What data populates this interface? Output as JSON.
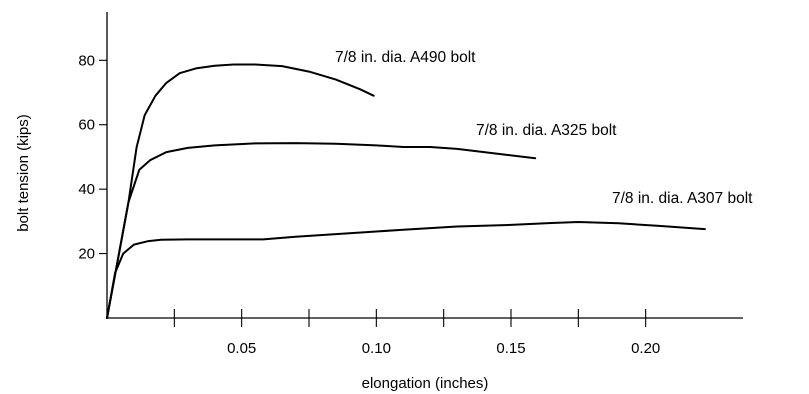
{
  "chart_data": {
    "type": "line",
    "title": "",
    "xlabel": "elongation (inches)",
    "ylabel": "bolt tension (kips)",
    "xlim": [
      0,
      0.225
    ],
    "ylim": [
      0,
      95
    ],
    "x_ticks": [
      0.025,
      0.05,
      0.075,
      0.1,
      0.125,
      0.15,
      0.175,
      0.2
    ],
    "x_tick_labels": [
      "0.05",
      "0.10",
      "0.15",
      "0.20"
    ],
    "x_tick_label_values": [
      0.05,
      0.1,
      0.15,
      0.2
    ],
    "y_ticks": [
      20,
      40,
      60,
      80
    ],
    "y_tick_labels": [
      "20",
      "40",
      "60",
      "80"
    ],
    "grid": false,
    "legend": "none",
    "series": [
      {
        "name": "7/8 in. dia. A490 bolt",
        "x": [
          0,
          0.004,
          0.008,
          0.011,
          0.014,
          0.018,
          0.022,
          0.027,
          0.033,
          0.04,
          0.047,
          0.055,
          0.065,
          0.075,
          0.085,
          0.094,
          0.099
        ],
        "y": [
          0,
          18,
          36,
          53,
          63,
          69,
          73,
          76,
          77.5,
          78.3,
          78.7,
          78.7,
          78.2,
          76.5,
          74,
          71,
          69
        ]
      },
      {
        "name": "7/8 in. dia. A325 bolt",
        "x": [
          0,
          0.004,
          0.008,
          0.012,
          0.016,
          0.022,
          0.03,
          0.04,
          0.055,
          0.07,
          0.085,
          0.1,
          0.11,
          0.12,
          0.13,
          0.145,
          0.159
        ],
        "y": [
          0,
          18,
          36,
          46,
          49,
          51.5,
          52.8,
          53.6,
          54.2,
          54.3,
          54.1,
          53.6,
          53.1,
          53.1,
          52.5,
          51,
          49.6
        ]
      },
      {
        "name": "7/8 in. dia. A307 bolt",
        "x": [
          0,
          0.003,
          0.006,
          0.01,
          0.015,
          0.02,
          0.03,
          0.045,
          0.058,
          0.07,
          0.09,
          0.11,
          0.13,
          0.15,
          0.165,
          0.175,
          0.19,
          0.205,
          0.222
        ],
        "y": [
          0,
          14,
          20,
          22.8,
          23.8,
          24.3,
          24.4,
          24.4,
          24.4,
          25.2,
          26.3,
          27.4,
          28.4,
          28.9,
          29.5,
          29.8,
          29.4,
          28.6,
          27.6
        ]
      }
    ]
  }
}
